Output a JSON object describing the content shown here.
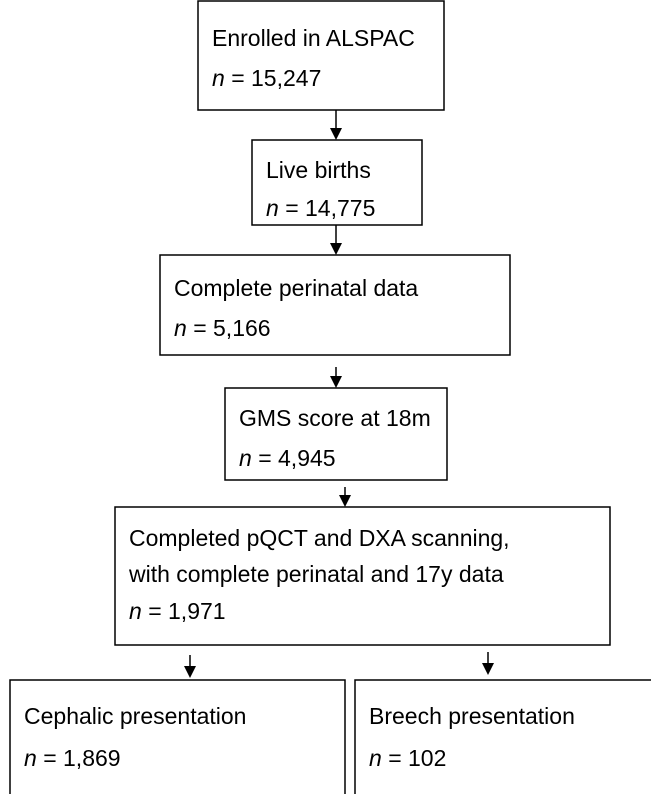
{
  "nodes": [
    {
      "lines": [
        "Enrolled in ALSPAC"
      ],
      "var": "n",
      "count": "= 15,247"
    },
    {
      "lines": [
        "Live births"
      ],
      "var": "n",
      "count": "= 14,775"
    },
    {
      "lines": [
        "Complete perinatal data"
      ],
      "var": "n",
      "count": "= 5,166"
    },
    {
      "lines": [
        "GMS score at 18m"
      ],
      "var": "n",
      "count": "= 4,945"
    },
    {
      "lines": [
        "Completed pQCT and DXA scanning,",
        "with complete perinatal and 17y data"
      ],
      "var": "n",
      "count": "= 1,971"
    },
    {
      "lines": [
        "Cephalic presentation"
      ],
      "var": "n",
      "count": "= 1,869"
    },
    {
      "lines": [
        "Breech presentation"
      ],
      "var": "n",
      "count": "= 102"
    }
  ]
}
